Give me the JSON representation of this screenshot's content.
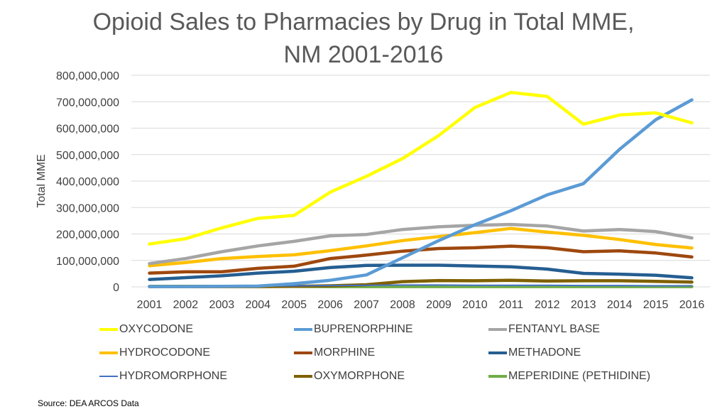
{
  "chart_data": {
    "type": "line",
    "title_line1": "Opioid Sales to Pharmacies by Drug in Total MME,",
    "title_line2": "NM 2001-2016",
    "ylabel": "Total MME",
    "xlabel": "",
    "ylim": [
      0,
      800000000
    ],
    "y_ticks": [
      {
        "value": 0,
        "label": "0"
      },
      {
        "value": 100000000,
        "label": "100,000,000"
      },
      {
        "value": 200000000,
        "label": "200,000,000"
      },
      {
        "value": 300000000,
        "label": "300,000,000"
      },
      {
        "value": 400000000,
        "label": "400,000,000"
      },
      {
        "value": 500000000,
        "label": "500,000,000"
      },
      {
        "value": 600000000,
        "label": "600,000,000"
      },
      {
        "value": 700000000,
        "label": "700,000,000"
      },
      {
        "value": 800000000,
        "label": "800,000,000"
      }
    ],
    "grid": true,
    "legend_position": "bottom",
    "categories": [
      "2001",
      "2002",
      "2003",
      "2004",
      "2005",
      "2006",
      "2007",
      "2008",
      "2009",
      "2010",
      "2011",
      "2012",
      "2013",
      "2014",
      "2015",
      "2016"
    ],
    "series": [
      {
        "name": "OXYCODONE",
        "color": "#FFFF00",
        "values": [
          162000000,
          182000000,
          223000000,
          259000000,
          270000000,
          358000000,
          418000000,
          485000000,
          572000000,
          678000000,
          735000000,
          720000000,
          615000000,
          650000000,
          658000000,
          620000000
        ]
      },
      {
        "name": "BUPRENORPHINE",
        "color": "#5B9BD5",
        "values": [
          1000000,
          1000000,
          2000000,
          3000000,
          12000000,
          25000000,
          45000000,
          110000000,
          175000000,
          235000000,
          288000000,
          348000000,
          390000000,
          520000000,
          632000000,
          707000000
        ]
      },
      {
        "name": "FENTANYL BASE",
        "color": "#A5A5A5",
        "values": [
          88000000,
          107000000,
          133000000,
          155000000,
          172000000,
          193000000,
          198000000,
          217000000,
          227000000,
          233000000,
          236000000,
          230000000,
          211000000,
          217000000,
          209000000,
          185000000
        ]
      },
      {
        "name": "HYDROCODONE",
        "color": "#FFC000",
        "values": [
          80000000,
          92000000,
          107000000,
          115000000,
          121000000,
          137000000,
          155000000,
          175000000,
          190000000,
          205000000,
          221000000,
          207000000,
          195000000,
          179000000,
          160000000,
          147000000
        ]
      },
      {
        "name": "MORPHINE",
        "color": "#9E480E",
        "values": [
          52000000,
          57000000,
          57000000,
          70000000,
          78000000,
          107000000,
          120000000,
          135000000,
          145000000,
          148000000,
          154000000,
          148000000,
          133000000,
          136000000,
          128000000,
          113000000
        ]
      },
      {
        "name": "METHADONE",
        "color": "#255E91",
        "values": [
          28000000,
          35000000,
          42000000,
          52000000,
          59000000,
          73000000,
          81000000,
          82000000,
          82000000,
          79000000,
          76000000,
          67000000,
          51000000,
          48000000,
          44000000,
          34000000
        ]
      },
      {
        "name": "HYDROMORPHONE",
        "color": "#4472C4",
        "values": [
          1000000,
          2000000,
          2000000,
          3000000,
          4000000,
          5000000,
          6000000,
          7000000,
          7000000,
          6000000,
          6000000,
          6000000,
          5000000,
          5000000,
          4000000,
          4000000
        ]
      },
      {
        "name": "OXYMORPHONE",
        "color": "#7F6000",
        "values": [
          1000000,
          1000000,
          1000000,
          1000000,
          2000000,
          4000000,
          8000000,
          20000000,
          24000000,
          23000000,
          25000000,
          22000000,
          23000000,
          23000000,
          21000000,
          18000000
        ]
      },
      {
        "name": "MEPERIDINE (PETHIDINE)",
        "color": "#70AD47",
        "values": [
          2000000,
          2000000,
          2000000,
          2000000,
          2000000,
          1000000,
          1000000,
          1000000,
          1000000,
          1000000,
          1000000,
          1000000,
          1000000,
          1000000,
          1000000,
          1000000
        ]
      }
    ]
  },
  "source": "Source:  DEA ARCOS Data"
}
